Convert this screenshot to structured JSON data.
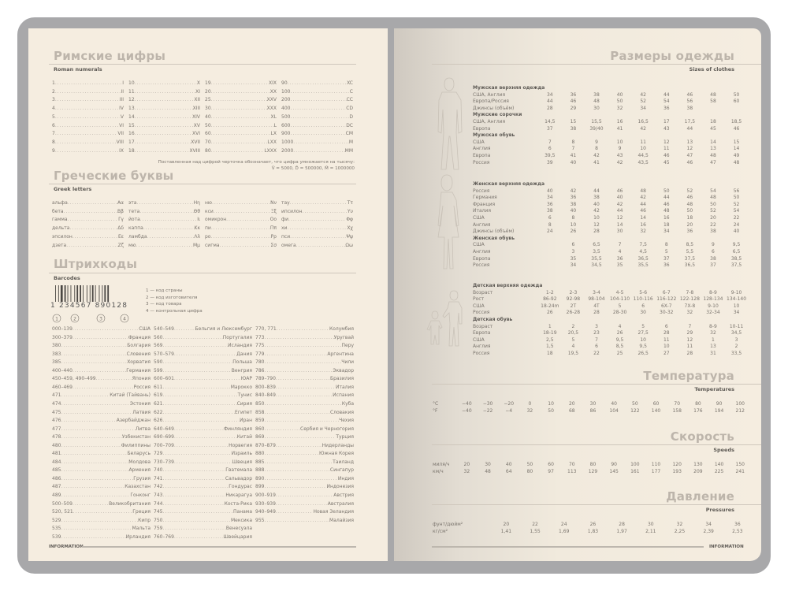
{
  "footer_label": "INFORMATION",
  "roman": {
    "title": "Римские цифры",
    "subtitle": "Roman numerals",
    "columns": [
      [
        [
          "1",
          "I"
        ],
        [
          "2",
          "II"
        ],
        [
          "3",
          "III"
        ],
        [
          "4",
          "IV"
        ],
        [
          "5",
          "V"
        ],
        [
          "6",
          "VI"
        ],
        [
          "7",
          "VII"
        ],
        [
          "8",
          "VIII"
        ],
        [
          "9",
          "IX"
        ]
      ],
      [
        [
          "10",
          "X"
        ],
        [
          "11",
          "XI"
        ],
        [
          "12",
          "XII"
        ],
        [
          "13",
          "XIII"
        ],
        [
          "14",
          "XIV"
        ],
        [
          "15",
          "XV"
        ],
        [
          "16",
          "XVI"
        ],
        [
          "17",
          "XVII"
        ],
        [
          "18",
          "XVIII"
        ]
      ],
      [
        [
          "19",
          "XIX"
        ],
        [
          "20",
          "XX"
        ],
        [
          "25",
          "XXV"
        ],
        [
          "30",
          "XXX"
        ],
        [
          "40",
          "XL"
        ],
        [
          "50",
          "L"
        ],
        [
          "60",
          "LX"
        ],
        [
          "70",
          "LXX"
        ],
        [
          "80",
          "LXXX"
        ]
      ],
      [
        [
          "90",
          "XC"
        ],
        [
          "100",
          "C"
        ],
        [
          "200",
          "CC"
        ],
        [
          "400",
          "CD"
        ],
        [
          "500",
          "D"
        ],
        [
          "600",
          "DC"
        ],
        [
          "900",
          "CM"
        ],
        [
          "1000",
          "M"
        ],
        [
          "2000",
          "MM"
        ]
      ]
    ],
    "note1": "Поставленная над цифрой черточка обозначает, что цифра умножается на тысячу:",
    "note2": "V̄ = 5000, D̄ = 500000, M̄ = 1000000"
  },
  "greek": {
    "title": "Греческие буквы",
    "subtitle": "Greek letters",
    "columns": [
      [
        [
          "альфа",
          "Αα"
        ],
        [
          "бета",
          "Ββ"
        ],
        [
          "гамма",
          "Γγ"
        ],
        [
          "дельта",
          "Δδ"
        ],
        [
          "эпсилон",
          "Εε"
        ],
        [
          "дзета",
          "Ζζ"
        ]
      ],
      [
        [
          "эта",
          "Ηη"
        ],
        [
          "тета",
          "Θθ"
        ],
        [
          "йота",
          "Ιι"
        ],
        [
          "каппа",
          "Κκ"
        ],
        [
          "ламбда",
          "Λλ"
        ],
        [
          "мю",
          "Μμ"
        ]
      ],
      [
        [
          "ню",
          "Νν"
        ],
        [
          "кси",
          "Ξξ"
        ],
        [
          "омикрон",
          "Οο"
        ],
        [
          "пи",
          "Ππ"
        ],
        [
          "ро",
          "Ρρ"
        ],
        [
          "сигма",
          "Σσ"
        ]
      ],
      [
        [
          "тау",
          "Ττ"
        ],
        [
          "ипсилон",
          "Υυ"
        ],
        [
          "фи",
          "Φφ"
        ],
        [
          "хи",
          "Χχ"
        ],
        [
          "пси",
          "Ψψ"
        ],
        [
          "омега",
          "Ωω"
        ]
      ]
    ]
  },
  "barcodes": {
    "title": "Штрихкоды",
    "subtitle": "Barcodes",
    "example_digits": "1 234567 890128",
    "legend": [
      "1 — код страны",
      "2 — код изготовителя",
      "3 — код товара",
      "4 — контрольная цифра"
    ],
    "columns": [
      [
        [
          "000–139",
          "США"
        ],
        [
          "300–379",
          "Франция"
        ],
        [
          "380",
          "Болгария"
        ],
        [
          "383",
          "Словения"
        ],
        [
          "385",
          "Хорватия"
        ],
        [
          "400–440",
          "Германия"
        ],
        [
          "450–459, 490–499",
          "Япония"
        ],
        [
          "460–469",
          "Россия"
        ],
        [
          "471",
          "Китай (Тайвань)"
        ],
        [
          "474",
          "Эстония"
        ],
        [
          "475",
          "Латвия"
        ],
        [
          "476",
          "Азербайджан"
        ],
        [
          "477",
          "Литва"
        ],
        [
          "478",
          "Узбекистан"
        ],
        [
          "480",
          "Филиппины"
        ],
        [
          "481",
          "Беларусь"
        ],
        [
          "484",
          "Молдова"
        ],
        [
          "485",
          "Армения"
        ],
        [
          "486",
          "Грузия"
        ],
        [
          "487",
          "Казахстан"
        ],
        [
          "489",
          "Гонконг"
        ],
        [
          "500–509",
          "Великобритания"
        ],
        [
          "520, 521",
          "Греция"
        ],
        [
          "529",
          "Кипр"
        ],
        [
          "535",
          "Мальта"
        ],
        [
          "539",
          "Ирландия"
        ]
      ],
      [
        [
          "540–549",
          "Бельгия и Люксембург"
        ],
        [
          "560",
          "Португалия"
        ],
        [
          "569",
          "Исландия"
        ],
        [
          "570–579",
          "Дания"
        ],
        [
          "590",
          "Польша"
        ],
        [
          "599",
          "Венгрия"
        ],
        [
          "600–601",
          "ЮАР"
        ],
        [
          "611",
          "Марокко"
        ],
        [
          "619",
          "Тунис"
        ],
        [
          "621",
          "Сирия"
        ],
        [
          "622",
          "Египет"
        ],
        [
          "626",
          "Иран"
        ],
        [
          "640–649",
          "Финляндия"
        ],
        [
          "690–699",
          "Китай"
        ],
        [
          "700–709",
          "Норвегия"
        ],
        [
          "729",
          "Израиль"
        ],
        [
          "730–739",
          "Швеция"
        ],
        [
          "740",
          "Гватемала"
        ],
        [
          "741",
          "Сальвадор"
        ],
        [
          "742",
          "Гондурас"
        ],
        [
          "743",
          "Никарагуа"
        ],
        [
          "744",
          "Коста-Рика"
        ],
        [
          "745",
          "Панама"
        ],
        [
          "750",
          "Мексика"
        ],
        [
          "759",
          "Венесуэла"
        ],
        [
          "760–769",
          "Швейцария"
        ]
      ],
      [
        [
          "770, 771",
          "Колумбия"
        ],
        [
          "773",
          "Уругвай"
        ],
        [
          "775",
          "Перу"
        ],
        [
          "779",
          "Аргентина"
        ],
        [
          "780",
          "Чили"
        ],
        [
          "786",
          "Эквадор"
        ],
        [
          "789–790",
          "Бразилия"
        ],
        [
          "800–839",
          "Италия"
        ],
        [
          "840–849",
          "Испания"
        ],
        [
          "850",
          "Куба"
        ],
        [
          "858",
          "Словакия"
        ],
        [
          "859",
          "Чехия"
        ],
        [
          "860",
          "Сербия и Черногория"
        ],
        [
          "869",
          "Турция"
        ],
        [
          "870–879",
          "Нидерланды"
        ],
        [
          "880",
          "Южная Корея"
        ],
        [
          "885",
          "Таиланд"
        ],
        [
          "888",
          "Сингапур"
        ],
        [
          "890",
          "Индия"
        ],
        [
          "899",
          "Индонезия"
        ],
        [
          "900–919",
          "Австрия"
        ],
        [
          "930–939",
          "Австралия"
        ],
        [
          "940–949",
          "Новая Зеландия"
        ],
        [
          "955",
          "Малайзия"
        ]
      ]
    ]
  },
  "sizes": {
    "title": "Размеры одежды",
    "subtitle": "Sizes of clothes",
    "blocks": [
      {
        "top": 108,
        "groups": [
          {
            "header": "Мужская верхняя одежда",
            "rows": [
              [
                "США, Англия",
                "34",
                "36",
                "38",
                "40",
                "42",
                "44",
                "46",
                "48",
                "50"
              ],
              [
                "Европа/Россия",
                "44",
                "46",
                "48",
                "50",
                "52",
                "54",
                "56",
                "58",
                "60"
              ],
              [
                "Джинсы (объём)",
                "28",
                "29",
                "30",
                "32",
                "34",
                "36",
                "38",
                "",
                ""
              ]
            ]
          },
          {
            "header": "Мужские сорочки",
            "rows": [
              [
                "США, Англия",
                "14,5",
                "15",
                "15,5",
                "16",
                "16,5",
                "17",
                "17,5",
                "18",
                "18,5"
              ],
              [
                "Европа",
                "37",
                "38",
                "39/40",
                "41",
                "42",
                "43",
                "44",
                "45",
                "46"
              ]
            ]
          },
          {
            "header": "Мужская обувь",
            "rows": [
              [
                "США",
                "7",
                "8",
                "9",
                "10",
                "11",
                "12",
                "13",
                "14",
                "15"
              ],
              [
                "Англия",
                "6",
                "7",
                "8",
                "9",
                "10",
                "11",
                "12",
                "13",
                "14"
              ],
              [
                "Европа",
                "39,5",
                "41",
                "42",
                "43",
                "44,5",
                "46",
                "47",
                "48",
                "49"
              ],
              [
                "Россия",
                "39",
                "40",
                "41",
                "42",
                "43,5",
                "45",
                "46",
                "47",
                "48"
              ]
            ]
          }
        ]
      },
      {
        "top": 230,
        "groups": [
          {
            "header": "Женская верхняя одежда",
            "rows": [
              [
                "Россия",
                "40",
                "42",
                "44",
                "46",
                "48",
                "50",
                "52",
                "54",
                "56"
              ],
              [
                "Германия",
                "34",
                "36",
                "38",
                "40",
                "42",
                "44",
                "46",
                "48",
                "50"
              ],
              [
                "Франция",
                "36",
                "38",
                "40",
                "42",
                "44",
                "46",
                "48",
                "50",
                "52"
              ],
              [
                "Италия",
                "38",
                "40",
                "42",
                "44",
                "46",
                "48",
                "50",
                "52",
                "54"
              ],
              [
                "США",
                "6",
                "8",
                "10",
                "12",
                "14",
                "16",
                "18",
                "20",
                "22"
              ],
              [
                "Англия",
                "8",
                "10",
                "12",
                "14",
                "16",
                "18",
                "20",
                "22",
                "24"
              ],
              [
                "Джинсы (объём)",
                "24",
                "26",
                "28",
                "30",
                "32",
                "34",
                "36",
                "38",
                "40"
              ]
            ]
          },
          {
            "header": "Женская обувь",
            "rows": [
              [
                "США",
                "",
                "6",
                "6,5",
                "7",
                "7,5",
                "8",
                "8,5",
                "9",
                "9,5"
              ],
              [
                "Англия",
                "",
                "3",
                "3,5",
                "4",
                "4,5",
                "5",
                "5,5",
                "6",
                "6,5"
              ],
              [
                "Европа",
                "",
                "35",
                "35,5",
                "36",
                "36,5",
                "37",
                "37,5",
                "38",
                "38,5"
              ],
              [
                "Россия",
                "",
                "34",
                "34,5",
                "35",
                "35,5",
                "36",
                "36,5",
                "37",
                "37,5"
              ]
            ]
          }
        ]
      },
      {
        "top": 359,
        "groups": [
          {
            "header": "Детская верхняя одежда",
            "rows": [
              [
                "Возраст",
                "1-2",
                "2-3",
                "3-4",
                "4-5",
                "5-6",
                "6-7",
                "7-8",
                "8-9",
                "9-10"
              ],
              [
                "Рост",
                "86-92",
                "92-98",
                "98-104",
                "104-110",
                "110-116",
                "116-122",
                "122-128",
                "128-134",
                "134-140"
              ],
              [
                "США",
                "18-24m",
                "2T",
                "4T",
                "5",
                "6",
                "6X-7",
                "7X-8",
                "9-10",
                "10"
              ],
              [
                "Россия",
                "26",
                "26-28",
                "28",
                "28-30",
                "30",
                "30-32",
                "32",
                "32-34",
                "34"
              ]
            ]
          },
          {
            "header": "Детская обувь",
            "rows": [
              [
                "Возраст",
                "1",
                "2",
                "3",
                "4",
                "5",
                "6",
                "7",
                "8-9",
                "10-11"
              ],
              [
                "Европа",
                "18-19",
                "20,5",
                "23",
                "26",
                "27,5",
                "28",
                "29",
                "32",
                "34,5"
              ],
              [
                "США",
                "2,5",
                "5",
                "7",
                "9,5",
                "10",
                "11",
                "12",
                "1",
                "3"
              ],
              [
                "Англия",
                "1,5",
                "4",
                "6",
                "8,5",
                "9,5",
                "10",
                "11",
                "13",
                "2"
              ],
              [
                "Россия",
                "18",
                "19,5",
                "22",
                "25",
                "26,5",
                "27",
                "28",
                "31",
                "33,5"
              ]
            ]
          }
        ]
      }
    ]
  },
  "temperature": {
    "title": "Температура",
    "subtitle": "Temperatures",
    "rows": [
      [
        "°C",
        "−40",
        "−30",
        "−20",
        "0",
        "10",
        "20",
        "30",
        "40",
        "50",
        "60",
        "70",
        "80",
        "90",
        "100"
      ],
      [
        "°F",
        "−40",
        "−22",
        "−4",
        "32",
        "50",
        "68",
        "86",
        "104",
        "122",
        "140",
        "158",
        "176",
        "194",
        "212"
      ]
    ]
  },
  "speed": {
    "title": "Скорость",
    "subtitle": "Speeds",
    "rows": [
      [
        "миля/ч",
        "20",
        "30",
        "40",
        "50",
        "60",
        "70",
        "80",
        "90",
        "100",
        "110",
        "120",
        "130",
        "140",
        "150"
      ],
      [
        "км/ч",
        "32",
        "48",
        "64",
        "80",
        "97",
        "113",
        "129",
        "145",
        "161",
        "177",
        "193",
        "209",
        "225",
        "241"
      ]
    ]
  },
  "pressure": {
    "title": "Давление",
    "subtitle": "Pressures",
    "rows": [
      [
        "фунт/дюйм²",
        "20",
        "22",
        "24",
        "26",
        "28",
        "30",
        "32",
        "34",
        "36"
      ],
      [
        "кг/см²",
        "1,41",
        "1,55",
        "1,69",
        "1,83",
        "1,97",
        "2,11",
        "2,25",
        "2,39",
        "2,53"
      ]
    ]
  }
}
